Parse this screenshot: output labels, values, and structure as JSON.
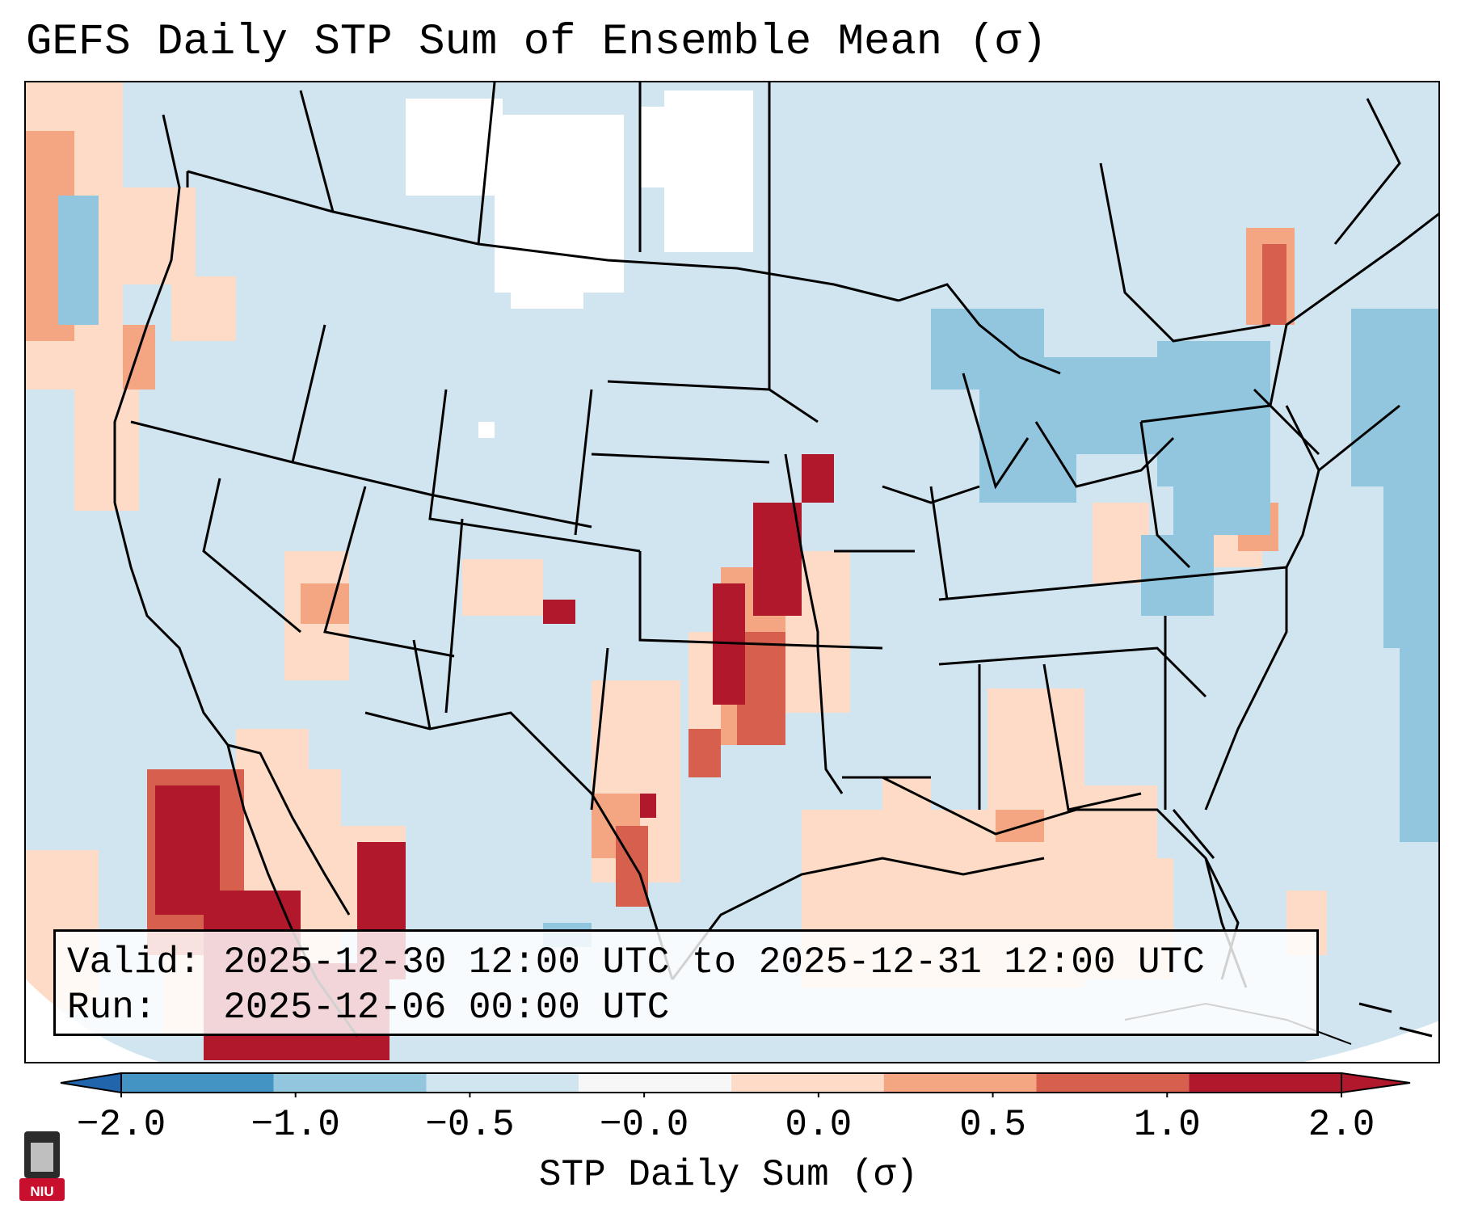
{
  "title": "GEFS Daily STP Sum of Ensemble Mean (σ)",
  "info": {
    "valid_label": "Valid:",
    "valid_value": "2025-12-30 12:00 UTC to 2025-12-31 12:00 UTC",
    "run_label": "Run:",
    "run_value": "2025-12-06 00:00 UTC"
  },
  "colorbar": {
    "label": "STP Daily Sum (σ)",
    "ticks": [
      "−2.0",
      "−1.0",
      "−0.5",
      "−0.0",
      "0.0",
      "0.5",
      "1.0",
      "2.0"
    ],
    "colors": [
      "#4393c3",
      "#92c5de",
      "#d1e5f0",
      "#f7f7f7",
      "#fddbc7",
      "#f4a582",
      "#d6604d",
      "#b2182b"
    ],
    "extend_low_color": "#2166ac",
    "extend_high_color": "#b2182b"
  },
  "logo": {
    "text": "NIU",
    "colors": {
      "tower": "#2b2b2b",
      "band": "#c8102e"
    }
  },
  "map": {
    "background_color": "#d1e5f0",
    "boundary_color": "#000000"
  }
}
